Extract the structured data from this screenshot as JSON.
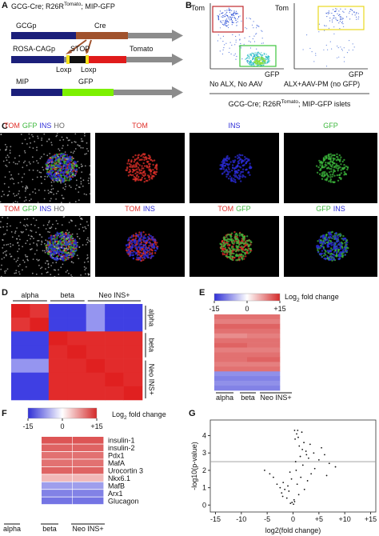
{
  "panels": {
    "A": {
      "letter": "A",
      "title": [
        "GCG-Cre; R26R",
        "Tomato",
        "; MIP-GFP"
      ],
      "labels": {
        "gcgp": "GCGp",
        "cre": "Cre",
        "rosa": "ROSA-CAGp",
        "stop": "STOP",
        "tomato": "Tomato",
        "loxp1": "Loxp",
        "loxp2": "Loxp",
        "mip": "MIP",
        "gfp": "GFP"
      }
    },
    "B": {
      "letter": "B",
      "plots": [
        {
          "y_label": "Tom",
          "x_label": "GFP",
          "condition": "No ALX, No AAV"
        },
        {
          "y_label": "Tom",
          "x_label": "GFP",
          "condition": "ALX+AAV-PM (no GFP)"
        }
      ],
      "caption": [
        "GCG-Cre; R26R",
        "Tomato",
        "; MIP-GFP islets"
      ]
    },
    "C": {
      "letter": "C",
      "images": [
        [
          {
            "labels": [
              {
                "text": "TOM",
                "color": "#e0302a"
              },
              {
                "text": "GFP",
                "color": "#3cb83c"
              },
              {
                "text": "INS",
                "color": "#2b2bd8"
              },
              {
                "text": "HO",
                "color": "#666666"
              }
            ]
          },
          {
            "labels": [
              {
                "text": "TOM",
                "color": "#e0302a"
              }
            ]
          },
          {
            "labels": [
              {
                "text": "INS",
                "color": "#2b2bd8"
              }
            ]
          },
          {
            "labels": [
              {
                "text": "GFP",
                "color": "#3cb83c"
              }
            ]
          }
        ],
        [
          {
            "labels": [
              {
                "text": "TOM",
                "color": "#e0302a"
              },
              {
                "text": "GFP",
                "color": "#3cb83c"
              },
              {
                "text": "INS",
                "color": "#2b2bd8"
              },
              {
                "text": "HO",
                "color": "#666666"
              }
            ]
          },
          {
            "labels": [
              {
                "text": "TOM",
                "color": "#e0302a"
              },
              {
                "text": "INS",
                "color": "#2b2bd8"
              }
            ]
          },
          {
            "labels": [
              {
                "text": "TOM",
                "color": "#e0302a"
              },
              {
                "text": "GFP",
                "color": "#3cb83c"
              }
            ]
          },
          {
            "labels": [
              {
                "text": "GFP",
                "color": "#3cb83c"
              },
              {
                "text": "INS",
                "color": "#2b2bd8"
              }
            ]
          }
        ]
      ]
    },
    "D": {
      "letter": "D",
      "groups": [
        "alpha",
        "beta",
        "Neo INS+"
      ],
      "group_sizes": [
        2,
        2,
        3
      ],
      "vlim": [
        -1,
        1
      ],
      "colors": [
        "#2a2ae0",
        "#ffffff",
        "#e02020"
      ],
      "matrix": [
        [
          1,
          0.9,
          -0.9,
          -0.9,
          -0.5,
          -0.9,
          -0.9
        ],
        [
          0.9,
          1,
          -0.9,
          -0.9,
          -0.5,
          -0.9,
          -0.9
        ],
        [
          -0.9,
          -0.9,
          1,
          0.95,
          0.95,
          0.95,
          0.95
        ],
        [
          -0.9,
          -0.9,
          0.95,
          1,
          0.95,
          0.95,
          0.95
        ],
        [
          -0.5,
          -0.5,
          0.95,
          0.95,
          1,
          0.95,
          0.95
        ],
        [
          -0.9,
          -0.9,
          0.95,
          0.95,
          0.95,
          1,
          0.95
        ],
        [
          -0.9,
          -0.9,
          0.95,
          0.95,
          0.95,
          0.95,
          1
        ]
      ]
    },
    "E": {
      "letter": "E",
      "colorbar": {
        "label": [
          "Log",
          "2",
          " fold change"
        ],
        "vlim": [
          -15,
          15
        ],
        "ticks": [
          -15,
          0,
          {
            "value": 15,
            "label": "+15"
          }
        ],
        "colors": [
          "#2f2fd6",
          "#ffffff",
          "#d42a2a"
        ]
      },
      "columns": [
        "alpha",
        "beta",
        "Neo INS+"
      ],
      "matrix": [
        [
          10,
          10
        ],
        [
          9,
          9
        ],
        [
          11,
          11
        ],
        [
          10,
          10
        ],
        [
          8,
          9
        ],
        [
          10,
          10
        ],
        [
          11,
          10
        ],
        [
          9,
          9
        ],
        [
          10,
          10
        ],
        [
          10,
          11
        ],
        [
          9,
          9
        ],
        [
          10,
          10
        ],
        [
          -8,
          -8
        ],
        [
          -9,
          -9
        ],
        [
          -8,
          -8
        ],
        [
          -9,
          -9
        ]
      ]
    },
    "F": {
      "letter": "F",
      "colorbar": {
        "label": [
          "Log",
          "2",
          " fold change"
        ],
        "vlim": [
          -15,
          15
        ],
        "ticks": [
          -15,
          0,
          {
            "value": 15,
            "label": "+15"
          }
        ],
        "colors": [
          "#2f2fd6",
          "#ffffff",
          "#d42a2a"
        ]
      },
      "columns": [
        "alpha",
        "beta",
        "Neo INS+"
      ],
      "genes": [
        "insulin-1",
        "insulin-2",
        "Pdx1",
        "MafA",
        "Urocortin 3",
        "Nkx6.1",
        "MafB",
        "Arx1",
        "Glucagon"
      ],
      "matrix": [
        [
          12,
          12
        ],
        [
          11,
          11
        ],
        [
          10,
          10
        ],
        [
          10,
          10
        ],
        [
          11,
          11
        ],
        [
          5,
          5
        ],
        [
          -7,
          -7
        ],
        [
          -9,
          -9
        ],
        [
          -10,
          -10
        ]
      ]
    },
    "G": {
      "letter": "G",
      "type": "scatter",
      "xlabel": "log2(fold change)",
      "ylabel": "-log10(p-value)",
      "xlim": [
        -16,
        16
      ],
      "ylim": [
        -0.4,
        4.9
      ],
      "xticks": [
        -15,
        -10,
        -5,
        0,
        {
          "value": 5,
          "label": "+5"
        },
        {
          "value": 10,
          "label": "+10"
        },
        {
          "value": 15,
          "label": "+15"
        }
      ],
      "yticks": [
        0,
        1,
        2,
        3,
        4
      ],
      "threshold": 2.5,
      "x": [
        -0.5,
        0.3,
        -1.2,
        1.1,
        -2,
        2.2,
        0.8,
        -0.8,
        1.5,
        -1.6,
        2.8,
        -2.5,
        3.5,
        -3.1,
        0.1,
        0.6,
        -0.3,
        1.9,
        -1.9,
        4.2,
        -3.8,
        5,
        -4.5,
        6.1,
        2.5,
        1.2,
        0.4,
        -0.6,
        3,
        1.7,
        0.9,
        2.1,
        1.4,
        0.2,
        -0.2,
        5.5,
        7,
        8.2,
        4,
        -5.5,
        1,
        0.5,
        1.8,
        2.6,
        0.7,
        3.3,
        -1,
        -2.2,
        6.5,
        0.3
      ],
      "y": [
        0.1,
        0.2,
        0.4,
        0.6,
        0.5,
        0.9,
        1.2,
        0.8,
        1.6,
        0.9,
        1.4,
        1,
        1.8,
        1.2,
        0.05,
        2,
        1.5,
        2.3,
        1.3,
        2.1,
        1.6,
        2.6,
        1.8,
        2.9,
        3.1,
        3.4,
        3.8,
        1.9,
        2.7,
        4.2,
        4.3,
        3.6,
        2.8,
        0.3,
        0.15,
        3.3,
        2.4,
        2.2,
        3,
        2,
        3.9,
        2.5,
        3.2,
        2.9,
        4.1,
        3.5,
        1.1,
        0.7,
        1.7,
        4.3
      ]
    }
  }
}
